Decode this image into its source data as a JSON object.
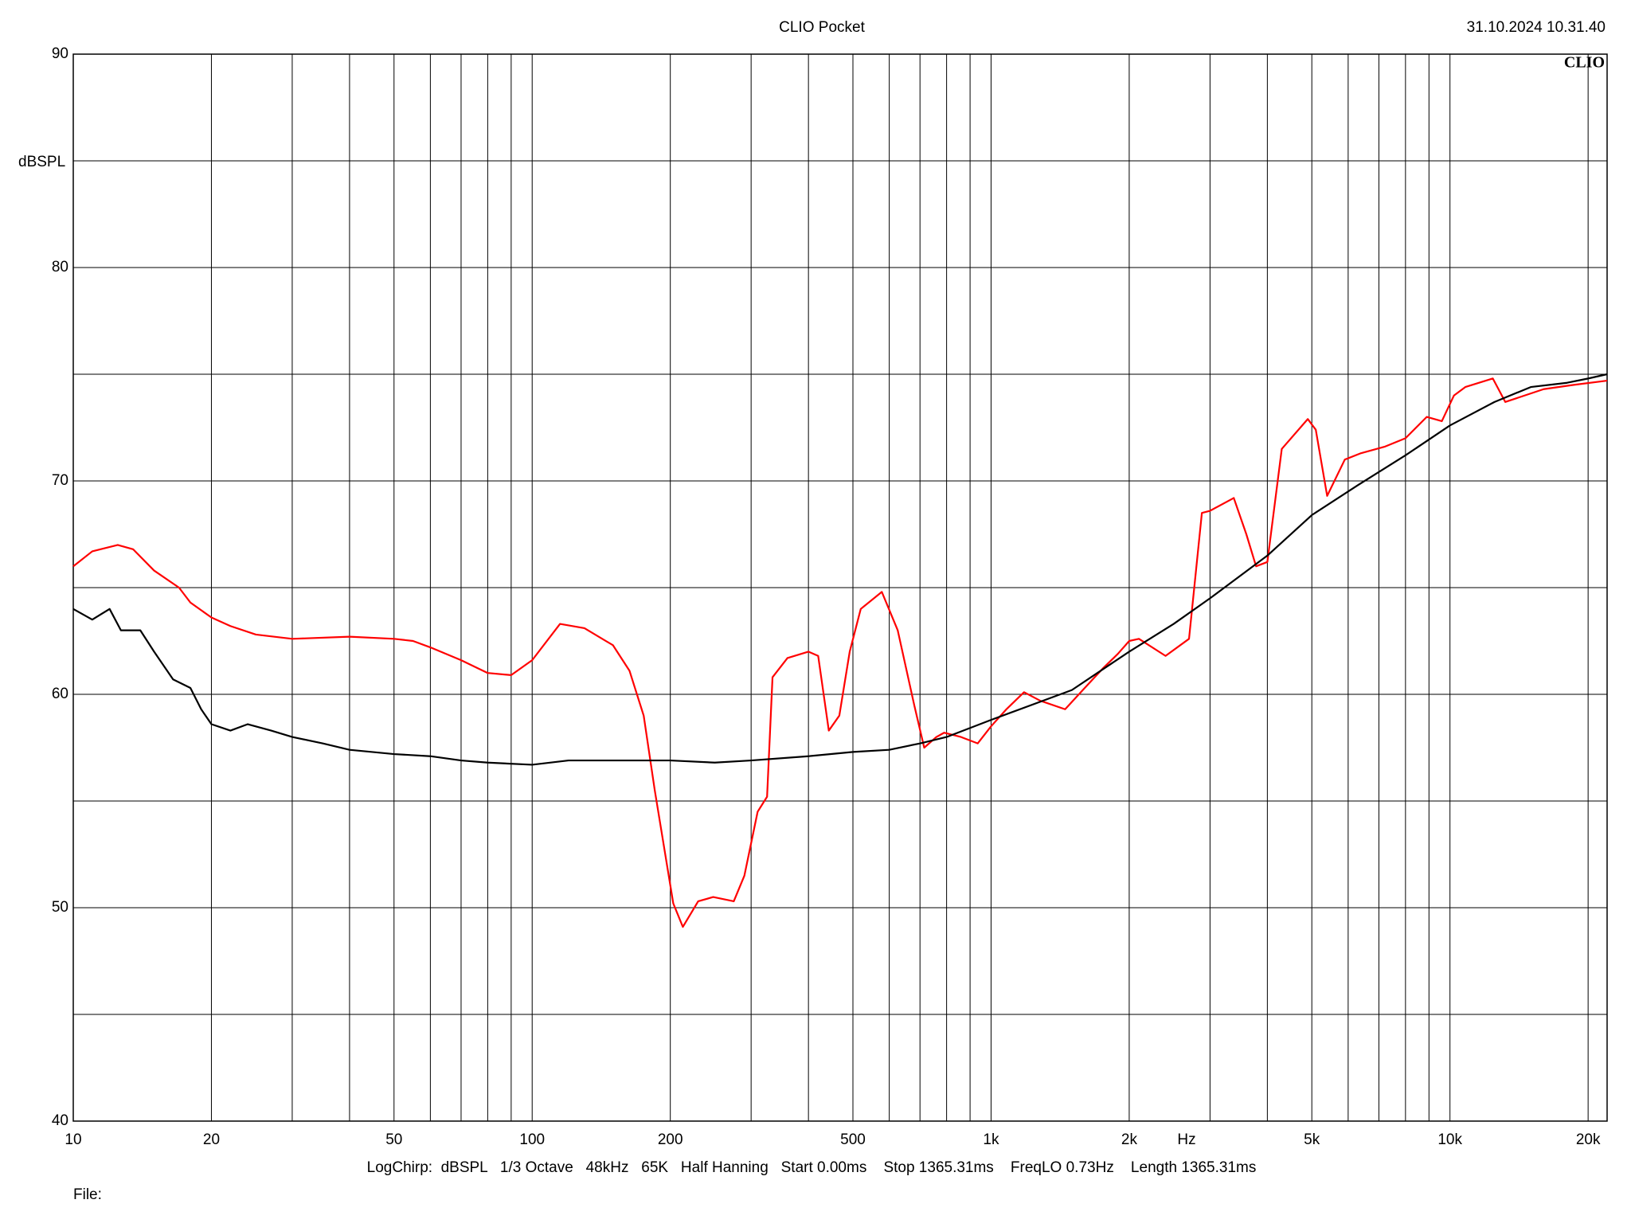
{
  "chart_data": {
    "type": "line",
    "title": "CLIO Pocket",
    "timestamp": "31.10.2024 10.31.40",
    "watermark": "CLIO",
    "ylabel": "dBSPL",
    "xlabel": "Hz",
    "footer": "LogChirp:  dBSPL   1/3 Octave   48kHz   65K   Half Hanning   Start 0.00ms    Stop 1365.31ms    FreqLO 0.73Hz    Length 1365.31ms",
    "file_label": "File:",
    "xscale": "log",
    "grid": true,
    "xlim": [
      10,
      22000
    ],
    "ylim": [
      40,
      90
    ],
    "xticks": [
      10,
      20,
      50,
      100,
      200,
      500,
      {
        "value": 1000,
        "label": "1k"
      },
      {
        "value": 2000,
        "label": "2k"
      },
      {
        "value": 5000,
        "label": "5k"
      },
      {
        "value": 10000,
        "label": "10k"
      },
      {
        "value": 20000,
        "label": "20k"
      }
    ],
    "xgrid_minor": [
      30,
      40,
      60,
      70,
      80,
      90,
      300,
      400,
      600,
      700,
      800,
      900,
      3000,
      4000,
      6000,
      7000,
      8000,
      9000
    ],
    "yticks": [
      40,
      50,
      60,
      70,
      80,
      90
    ],
    "ygrid_minor": [
      45,
      55,
      65,
      75,
      85
    ],
    "series": [
      {
        "color": "#ff0000",
        "x": [
          10,
          11,
          12.5,
          13.5,
          15,
          17,
          18,
          20,
          22,
          25,
          30,
          40,
          50,
          55,
          60,
          70,
          80,
          90,
          100,
          115,
          130,
          150,
          163,
          175,
          185,
          203,
          213,
          230,
          248,
          275,
          290,
          310,
          325,
          334,
          360,
          400,
          420,
          443,
          467,
          492,
          520,
          578,
          626,
          680,
          715,
          760,
          790,
          860,
          935,
          1000,
          1080,
          1180,
          1280,
          1450,
          1600,
          1750,
          1890,
          2000,
          2100,
          2400,
          2700,
          2880,
          3000,
          3380,
          3600,
          3780,
          4000,
          4300,
          4900,
          5100,
          5400,
          5900,
          6400,
          7200,
          8000,
          8900,
          9600,
          10200,
          10800,
          12400,
          13200,
          16000,
          18600,
          22000
        ],
        "values": [
          66.0,
          66.7,
          67.0,
          66.8,
          65.8,
          65.0,
          64.3,
          63.6,
          63.2,
          62.8,
          62.6,
          62.7,
          62.6,
          62.5,
          62.2,
          61.6,
          61.0,
          60.9,
          61.6,
          63.3,
          63.1,
          62.3,
          61.1,
          59.0,
          55.5,
          50.2,
          49.1,
          50.3,
          50.5,
          50.3,
          51.5,
          54.5,
          55.2,
          60.8,
          61.7,
          62.0,
          61.8,
          58.3,
          59.0,
          62.0,
          64.0,
          64.8,
          63.0,
          59.5,
          57.5,
          58.0,
          58.2,
          58.0,
          57.7,
          58.5,
          59.3,
          60.1,
          59.7,
          59.3,
          60.3,
          61.2,
          61.9,
          62.5,
          62.6,
          61.8,
          62.6,
          68.5,
          68.6,
          69.2,
          67.5,
          66.0,
          66.2,
          71.5,
          72.9,
          72.4,
          69.3,
          71.0,
          71.3,
          71.6,
          72.0,
          73.0,
          72.8,
          74.0,
          74.4,
          74.8,
          73.7,
          74.3,
          74.5,
          74.7
        ]
      },
      {
        "color": "#000000",
        "x": [
          10,
          11,
          12,
          12.7,
          14,
          15,
          16.5,
          18,
          19,
          20,
          22,
          24,
          27,
          30,
          35,
          40,
          50,
          60,
          70,
          80,
          100,
          120,
          150,
          200,
          250,
          300,
          400,
          500,
          600,
          700,
          800,
          1000,
          1500,
          2000,
          2500,
          3000,
          4000,
          5000,
          6300,
          8000,
          10000,
          12500,
          15000,
          18000,
          20000,
          22000
        ],
        "values": [
          64.0,
          63.5,
          64.0,
          63.0,
          63.0,
          62.0,
          60.7,
          60.3,
          59.3,
          58.6,
          58.3,
          58.6,
          58.3,
          58.0,
          57.7,
          57.4,
          57.2,
          57.1,
          56.9,
          56.8,
          56.7,
          56.9,
          56.9,
          56.9,
          56.8,
          56.9,
          57.1,
          57.3,
          57.4,
          57.7,
          58.0,
          58.8,
          60.2,
          62.0,
          63.3,
          64.5,
          66.5,
          68.4,
          69.8,
          71.2,
          72.6,
          73.7,
          74.4,
          74.6,
          74.8,
          75.0
        ]
      }
    ]
  }
}
